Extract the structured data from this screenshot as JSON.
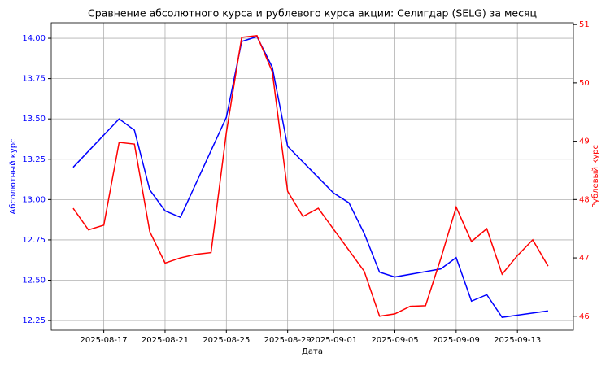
{
  "chart_data": {
    "type": "line",
    "title": "Сравнение абсолютного курса и рублевого курса акции: Селигдар (SELG) за месяц",
    "xlabel": "Дата",
    "ylabel": "Абсолютный курс",
    "y2label": "Рублевый курс",
    "xlim": [
      "2025-08-13T13:40",
      "2025-09-16T15:40"
    ],
    "xticks": [
      "2025-08-17",
      "2025-08-21",
      "2025-08-25",
      "2025-08-29",
      "2025-09-01",
      "2025-09-05",
      "2025-09-09",
      "2025-09-13"
    ],
    "ylim": [
      12.19,
      14.096
    ],
    "yticks": [
      {
        "value": 12.25,
        "label": "12.25"
      },
      {
        "value": 12.5,
        "label": "12.50"
      },
      {
        "value": 12.75,
        "label": "12.75"
      },
      {
        "value": 13,
        "label": "13.00"
      },
      {
        "value": 13.25,
        "label": "13.25"
      },
      {
        "value": 13.5,
        "label": "13.50"
      },
      {
        "value": 13.75,
        "label": "13.75"
      },
      {
        "value": 14,
        "label": "14.00"
      }
    ],
    "y2lim": [
      45.76,
      51.03
    ],
    "y2ticks": [
      46,
      47,
      48,
      49,
      50,
      51
    ],
    "grid": true,
    "series": [
      {
        "color": "#0000ff",
        "axis": "y",
        "x": [
          "2025-08-15",
          "2025-08-18",
          "2025-08-19",
          "2025-08-20",
          "2025-08-21",
          "2025-08-22",
          "2025-08-25",
          "2025-08-26",
          "2025-08-27",
          "2025-08-28",
          "2025-08-29",
          "2025-09-01",
          "2025-09-02",
          "2025-09-03",
          "2025-09-04",
          "2025-09-05",
          "2025-09-08",
          "2025-09-09",
          "2025-09-10",
          "2025-09-11",
          "2025-09-12",
          "2025-09-15"
        ],
        "values": [
          13.2,
          13.5,
          13.43,
          13.06,
          12.93,
          12.89,
          13.51,
          13.98,
          14.01,
          13.82,
          13.33,
          13.04,
          12.98,
          12.79,
          12.55,
          12.52,
          12.57,
          12.64,
          12.37,
          12.41,
          12.27,
          12.31
        ]
      },
      {
        "color": "#ff0000",
        "axis": "y2",
        "x": [
          "2025-08-15",
          "2025-08-16",
          "2025-08-17",
          "2025-08-18",
          "2025-08-19",
          "2025-08-20",
          "2025-08-21",
          "2025-08-22",
          "2025-08-23",
          "2025-08-24",
          "2025-08-25",
          "2025-08-26",
          "2025-08-27",
          "2025-08-28",
          "2025-08-29",
          "2025-08-30",
          "2025-08-31",
          "2025-09-01",
          "2025-09-02",
          "2025-09-03",
          "2025-09-04",
          "2025-09-05",
          "2025-09-06",
          "2025-09-07",
          "2025-09-08",
          "2025-09-09",
          "2025-09-10",
          "2025-09-11",
          "2025-09-12",
          "2025-09-13",
          "2025-09-14",
          "2025-09-15"
        ],
        "values": [
          47.85,
          47.48,
          47.56,
          48.98,
          48.95,
          47.45,
          46.91,
          47.0,
          47.06,
          47.09,
          49.15,
          50.78,
          50.81,
          50.19,
          48.14,
          47.71,
          47.85,
          47.49,
          47.13,
          46.77,
          46.0,
          46.04,
          46.17,
          46.18,
          46.99,
          47.87,
          47.28,
          47.5,
          46.72,
          47.04,
          47.31,
          46.86
        ]
      }
    ]
  }
}
